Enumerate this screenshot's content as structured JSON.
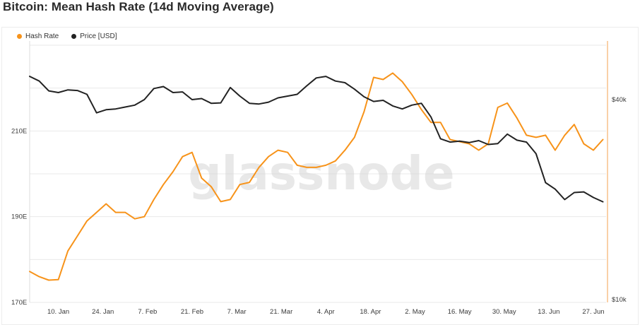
{
  "header": {
    "title": "Bitcoin: Mean Hash Rate (14d Moving Average)"
  },
  "legend": [
    {
      "label": "Hash Rate",
      "color": "#f7931a"
    },
    {
      "label": "Price [USD]",
      "color": "#222222"
    }
  ],
  "watermark": "glassnode",
  "colors": {
    "hash_rate": "#f7931a",
    "price": "#222222",
    "grid": "#e9e9e9",
    "right_axis": "#f7c08a"
  },
  "chart_data": {
    "type": "line",
    "title": "Bitcoin: Mean Hash Rate (14d Moving Average)",
    "x_ticks": [
      "10. Jan",
      "24. Jan",
      "7. Feb",
      "21. Feb",
      "7. Mar",
      "21. Mar",
      "4. Apr",
      "18. Apr",
      "2. May",
      "16. May",
      "30. May",
      "13. Jun",
      "27. Jun"
    ],
    "x_tick_days": [
      9,
      23,
      37,
      51,
      65,
      79,
      93,
      107,
      121,
      135,
      149,
      163,
      177
    ],
    "xlim_days": [
      0,
      181
    ],
    "y_left": {
      "ticks": [
        "170E",
        "190E",
        "210E"
      ],
      "tick_values": [
        170,
        190,
        210
      ],
      "ylim": [
        170,
        230
      ],
      "unit": "EH/s"
    },
    "y_right": {
      "ticks": [
        "$10k",
        "$40k"
      ],
      "tick_values": [
        10000,
        40000
      ],
      "scale": "log"
    },
    "grid": true,
    "legend_position": "top-left",
    "series": [
      {
        "name": "Hash Rate",
        "axis": "left",
        "color": "#f7931a",
        "x_days": [
          0,
          3,
          6,
          9,
          12,
          15,
          18,
          21,
          24,
          27,
          30,
          33,
          36,
          39,
          42,
          45,
          48,
          51,
          54,
          57,
          60,
          63,
          66,
          69,
          72,
          75,
          78,
          81,
          84,
          87,
          90,
          93,
          96,
          99,
          102,
          105,
          108,
          111,
          114,
          117,
          120,
          123,
          126,
          129,
          132,
          135,
          138,
          141,
          144,
          147,
          150,
          153,
          156,
          159,
          162,
          165,
          168,
          171,
          174,
          177,
          180
        ],
        "values": [
          177.2,
          176.0,
          175.2,
          175.3,
          182.0,
          185.5,
          189.0,
          191.0,
          193.0,
          191.0,
          191.0,
          189.5,
          190.0,
          194.0,
          197.5,
          200.5,
          204.0,
          205.0,
          199.0,
          197.0,
          193.5,
          194.0,
          197.5,
          198.0,
          201.5,
          204.0,
          205.5,
          205.0,
          202.0,
          201.5,
          201.5,
          202.0,
          203.0,
          205.5,
          208.5,
          214.5,
          222.5,
          222.0,
          223.5,
          221.5,
          218.5,
          215.0,
          212.0,
          212.0,
          208.0,
          207.5,
          207.0,
          205.5,
          207.0,
          215.5,
          216.5,
          213.0,
          209.0,
          208.5,
          209.0,
          205.5,
          209.0,
          211.5,
          207.0,
          205.5,
          208.0
        ]
      },
      {
        "name": "Price [USD]",
        "axis": "right",
        "color": "#222222",
        "x_days": [
          0,
          3,
          6,
          9,
          12,
          15,
          18,
          21,
          24,
          27,
          30,
          33,
          36,
          39,
          42,
          45,
          48,
          51,
          54,
          57,
          60,
          63,
          66,
          69,
          72,
          75,
          78,
          81,
          84,
          87,
          90,
          93,
          96,
          99,
          102,
          105,
          108,
          111,
          114,
          117,
          120,
          123,
          126,
          129,
          132,
          135,
          138,
          141,
          144,
          147,
          150,
          153,
          156,
          159,
          162,
          165,
          168,
          171,
          174,
          177,
          180
        ],
        "values": [
          47000,
          45500,
          42500,
          42000,
          42800,
          42600,
          41500,
          36500,
          37300,
          37500,
          38000,
          38500,
          40000,
          43200,
          43800,
          42000,
          42200,
          40000,
          40300,
          39000,
          39100,
          43500,
          41000,
          39000,
          38800,
          39300,
          40500,
          41000,
          41500,
          44000,
          46500,
          47000,
          45500,
          45000,
          43000,
          40800,
          39500,
          39800,
          38300,
          37500,
          38500,
          39000,
          35500,
          30500,
          29800,
          30000,
          29700,
          30100,
          29300,
          29500,
          31500,
          30200,
          29800,
          27500,
          22500,
          21500,
          20000,
          21000,
          21100,
          20300,
          19700
        ]
      }
    ]
  }
}
